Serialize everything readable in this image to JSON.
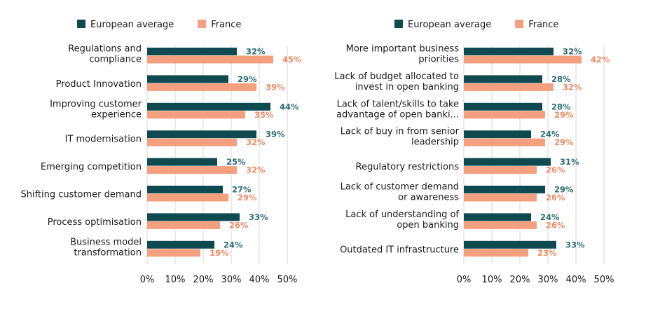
{
  "chart_data": [
    {
      "type": "bar",
      "orientation": "horizontal",
      "categories": [
        [
          "Regulations and",
          "compliance"
        ],
        [
          "Product Innovation"
        ],
        [
          "Improving customer",
          "experience"
        ],
        [
          "IT modernisation"
        ],
        [
          "Emerging competition"
        ],
        [
          "Shifting customer demand"
        ],
        [
          "Process optimisation"
        ],
        [
          "Business model",
          "transformation"
        ]
      ],
      "series": [
        {
          "name": "European average",
          "color": "#0e4a4f",
          "values": [
            32,
            29,
            44,
            39,
            25,
            27,
            33,
            24
          ]
        },
        {
          "name": "France",
          "color": "#f4a07e",
          "values": [
            45,
            39,
            35,
            32,
            32,
            29,
            26,
            19
          ]
        }
      ],
      "value_suffix": "%",
      "xlim": [
        0,
        50
      ],
      "xticks": [
        "0%",
        "10%",
        "20%",
        "30%",
        "40%",
        "50%"
      ],
      "grid": true,
      "legend_position": "top"
    },
    {
      "type": "bar",
      "orientation": "horizontal",
      "categories": [
        [
          "More important business",
          "priorities"
        ],
        [
          "Lack of budget allocated to",
          "invest in open banking"
        ],
        [
          "Lack of talent/skills to take",
          "advantage of open banki..."
        ],
        [
          "Lack of buy in from senior",
          "leadership"
        ],
        [
          "Regulatory restrictions"
        ],
        [
          "Lack of customer demand",
          "or awareness"
        ],
        [
          "Lack of understanding of",
          "open banking"
        ],
        [
          "Outdated IT infrastructure"
        ]
      ],
      "series": [
        {
          "name": "European average",
          "color": "#0e4a4f",
          "values": [
            32,
            28,
            28,
            24,
            31,
            29,
            24,
            33
          ]
        },
        {
          "name": "France",
          "color": "#f4a07e",
          "values": [
            42,
            32,
            29,
            29,
            26,
            26,
            26,
            23
          ]
        }
      ],
      "value_suffix": "%",
      "xlim": [
        0,
        50
      ],
      "xticks": [
        "0%",
        "10%",
        "20%",
        "30%",
        "40%",
        "50%"
      ],
      "grid": true,
      "legend_position": "top"
    }
  ],
  "colors": {
    "european_label": "#2e6f75",
    "france_label": "#f08a63"
  }
}
